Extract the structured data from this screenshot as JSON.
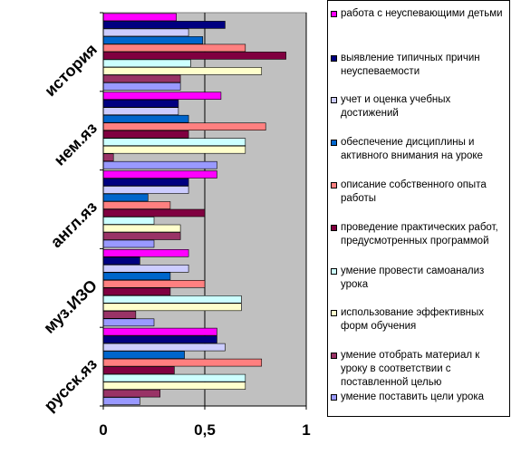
{
  "chart_data": {
    "type": "bar",
    "orientation": "horizontal",
    "xlim": [
      0,
      1
    ],
    "x_ticks": [
      "0",
      "0,5",
      "1"
    ],
    "categories": [
      "русск.яз",
      "муз.ИЗО",
      "англ.яз",
      "нем.яз",
      "история"
    ],
    "grid": "vertical lines at 0.5 and 1",
    "legend_position": "right",
    "series": [
      {
        "name": "работа с неуспевающими детьми",
        "color": "#FF00FF",
        "values": [
          0.56,
          0.42,
          0.56,
          0.58,
          0.36
        ]
      },
      {
        "name": "выявление типичных причин неуспеваемости",
        "color": "#000080",
        "values": [
          0.56,
          0.18,
          0.42,
          0.37,
          0.6
        ]
      },
      {
        "name": "учет и оценка учебных достижений",
        "color": "#CCCCFF",
        "values": [
          0.6,
          0.42,
          0.42,
          0.37,
          0.42
        ]
      },
      {
        "name": "обеспечение дисциплины и активного внимания на уроке",
        "color": "#0066CC",
        "values": [
          0.4,
          0.33,
          0.22,
          0.42,
          0.49
        ]
      },
      {
        "name": "описание собственного опыта работы",
        "color": "#FF8080",
        "values": [
          0.78,
          0.5,
          0.33,
          0.8,
          0.7
        ]
      },
      {
        "name": "проведение практических работ, предусмотренных программой",
        "color": "#800040",
        "values": [
          0.35,
          0.33,
          0.5,
          0.42,
          0.9
        ]
      },
      {
        "name": "умение провести самоанализ урока",
        "color": "#CCFFFF",
        "values": [
          0.7,
          0.68,
          0.25,
          0.7,
          0.43
        ]
      },
      {
        "name": "использование эффективных форм обучения",
        "color": "#FFFFCC",
        "values": [
          0.7,
          0.68,
          0.38,
          0.7,
          0.78
        ]
      },
      {
        "name": "умение отобрать материал к уроку в соответствии с поставленной целью",
        "color": "#993366",
        "values": [
          0.28,
          0.16,
          0.38,
          0.05,
          0.38
        ]
      },
      {
        "name": "умение поставить цели урока",
        "color": "#9999FF",
        "values": [
          0.18,
          0.25,
          0.25,
          0.56,
          0.38
        ]
      }
    ]
  },
  "legend": {
    "items": [
      "работа с неуспевающими детьми",
      "выявление типичных причин неуспеваемости",
      "учет и оценка учебных достижений",
      "обеспечение дисциплины и активного внимания на уроке",
      "описание собственного опыта работы",
      "проведение практических работ, предусмотренных программой",
      "умение провести самоанализ урока",
      "использование эффективных форм обучения",
      "умение отобрать материал к уроку в соответствии с поставленной целью",
      "умение поставить цели урока"
    ]
  }
}
